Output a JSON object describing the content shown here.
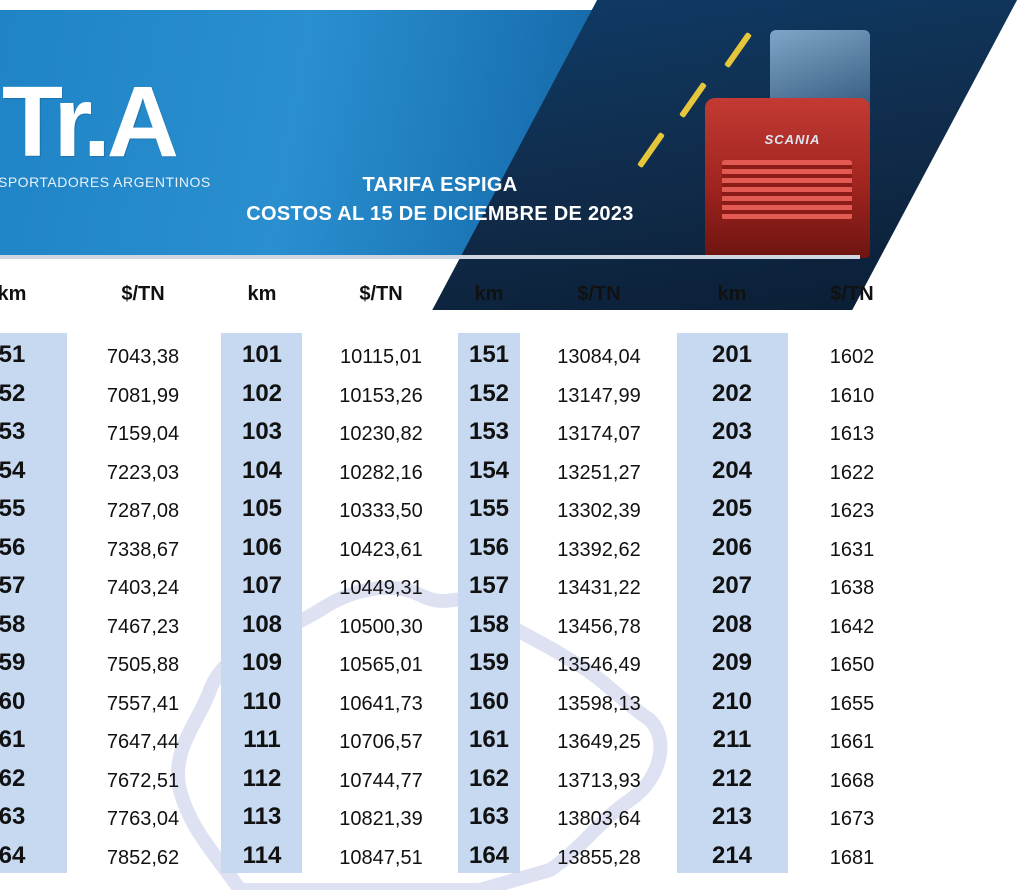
{
  "header": {
    "logo_text": "Tr.A",
    "logo_subtitle": "SPORTADORES ARGENTINOS",
    "truck_brand": "SCANIA",
    "title_line1": "TARIFA ESPIGA",
    "title_line2": "COSTOS AL 15 DE DICIEMBRE DE 2023"
  },
  "table": {
    "header_km": "km",
    "header_price": "$/TN",
    "columns": [
      {
        "km": [
          "51",
          "52",
          "53",
          "54",
          "55",
          "56",
          "57",
          "58",
          "59",
          "60",
          "61",
          "62",
          "63",
          "64"
        ],
        "price": [
          "7043,38",
          "7081,99",
          "7159,04",
          "7223,03",
          "7287,08",
          "7338,67",
          "7403,24",
          "7467,23",
          "7505,88",
          "7557,41",
          "7647,44",
          "7672,51",
          "7763,04",
          "7852,62"
        ]
      },
      {
        "km": [
          "101",
          "102",
          "103",
          "104",
          "105",
          "106",
          "107",
          "108",
          "109",
          "110",
          "111",
          "112",
          "113",
          "114"
        ],
        "price": [
          "10115,01",
          "10153,26",
          "10230,82",
          "10282,16",
          "10333,50",
          "10423,61",
          "10449,31",
          "10500,30",
          "10565,01",
          "10641,73",
          "10706,57",
          "10744,77",
          "10821,39",
          "10847,51"
        ]
      },
      {
        "km": [
          "151",
          "152",
          "153",
          "154",
          "155",
          "156",
          "157",
          "158",
          "159",
          "160",
          "161",
          "162",
          "163",
          "164"
        ],
        "price": [
          "13084,04",
          "13147,99",
          "13174,07",
          "13251,27",
          "13302,39",
          "13392,62",
          "13431,22",
          "13456,78",
          "13546,49",
          "13598,13",
          "13649,25",
          "13713,93",
          "13803,64",
          "13855,28"
        ]
      },
      {
        "km": [
          "201",
          "202",
          "203",
          "204",
          "205",
          "206",
          "207",
          "208",
          "209",
          "210",
          "211",
          "212",
          "213",
          "214"
        ],
        "price": [
          "1602",
          "1610",
          "1613",
          "1622",
          "1623",
          "1631",
          "1638",
          "1642",
          "1650",
          "1655",
          "1661",
          "1668",
          "1673",
          "1681"
        ]
      }
    ]
  },
  "colors": {
    "column_highlight": "#c6d9f0",
    "banner": "#1f84c6",
    "title_text": "#ffffff"
  }
}
